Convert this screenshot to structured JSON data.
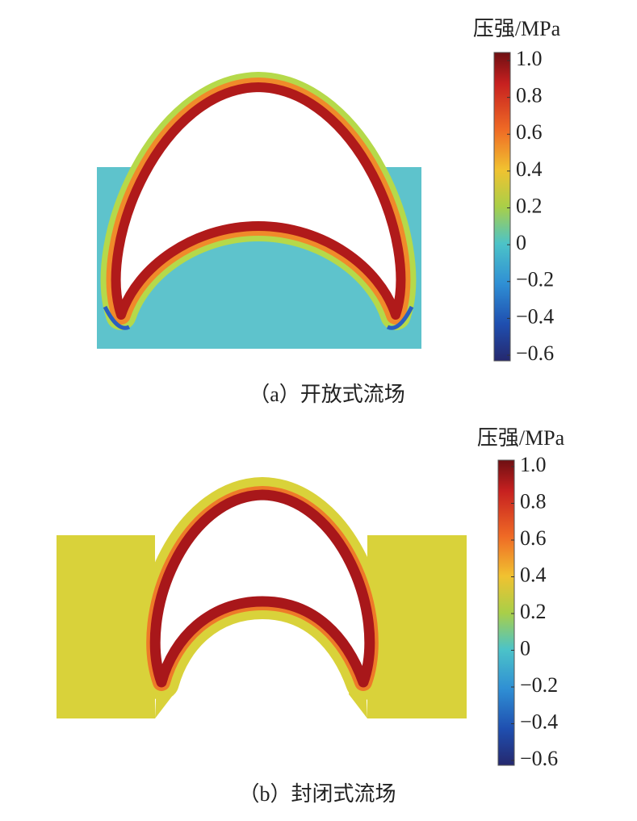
{
  "panels": [
    {
      "caption": "（a）开放式流场",
      "colorbar": {
        "title": "压强/MPa",
        "ticks": [
          "1.0",
          "0.8",
          "0.6",
          "0.4",
          "0.2",
          "0",
          "−0.2",
          "−0.4",
          "−0.6"
        ]
      }
    },
    {
      "caption": "（b）封闭式流场",
      "colorbar": {
        "title": "压强/MPa",
        "ticks": [
          "1.0",
          "0.8",
          "0.6",
          "0.4",
          "0.2",
          "0",
          "−0.2",
          "−0.4",
          "−0.6"
        ]
      }
    }
  ]
}
